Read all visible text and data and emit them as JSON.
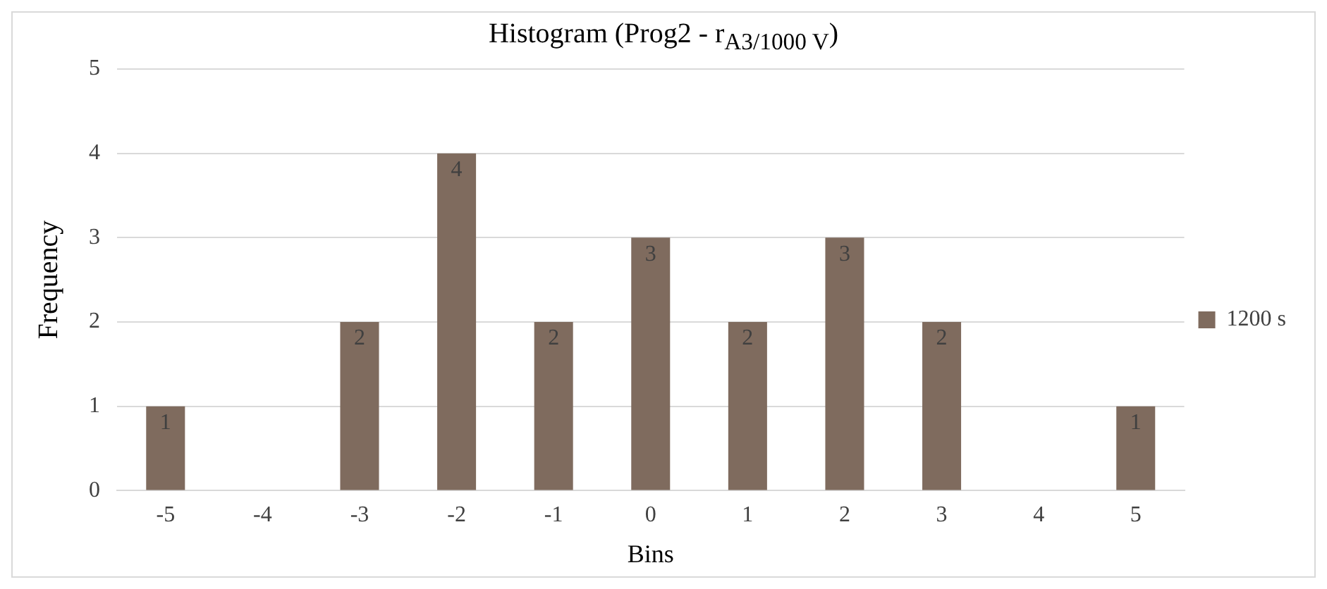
{
  "chart_data": {
    "type": "bar",
    "title": "Histogram (Prog2 - r$_{A3/1000 V}$)",
    "xlabel": "Bins",
    "ylabel": "Frequency",
    "categories": [
      "-5",
      "-4",
      "-3",
      "-2",
      "-1",
      "0",
      "1",
      "2",
      "3",
      "4",
      "5"
    ],
    "series": [
      {
        "name": "1200 s",
        "color": "#7f6b5e",
        "values": [
          1,
          0,
          2,
          4,
          2,
          3,
          2,
          3,
          2,
          0,
          1
        ],
        "value_labels": [
          "1",
          null,
          "2",
          "4",
          "2",
          "3",
          "2",
          "3",
          "2",
          null,
          "1"
        ]
      }
    ],
    "ylim": [
      0,
      5
    ],
    "yticks": [
      0,
      1,
      2,
      3,
      4,
      5
    ],
    "grid": "y",
    "legend": "right"
  }
}
